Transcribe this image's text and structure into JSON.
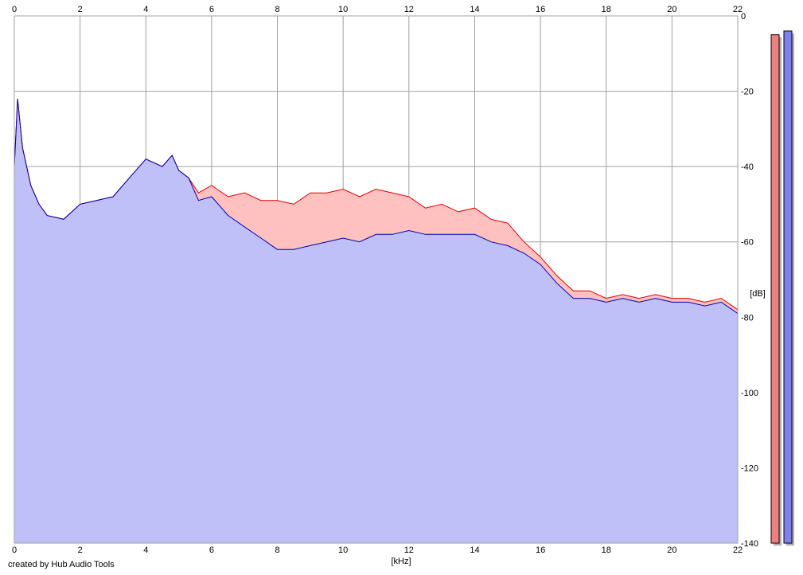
{
  "credit": "created by Hub Audio Tools",
  "chart_data": {
    "type": "area",
    "xlabel": "[kHz]",
    "ylabel": "[dB]",
    "xlim": [
      0,
      22
    ],
    "ylim": [
      -140,
      0
    ],
    "x_ticks": [
      0,
      2,
      4,
      6,
      8,
      10,
      12,
      14,
      16,
      18,
      20,
      22
    ],
    "y_ticks": [
      0,
      -20,
      -40,
      -60,
      -80,
      -100,
      -120,
      -140
    ],
    "y_tick_labels": [
      "0",
      "-20",
      "-40",
      "-60",
      "-80",
      "-100",
      "-120",
      "-140"
    ],
    "grid": true,
    "colors": {
      "left_line": "#e00000",
      "left_fill": "#ffc0c0",
      "right_line": "#0000b0",
      "right_fill": "#c0c0f8",
      "grid": "#a0a0a0",
      "meter_left": "#f08080",
      "meter_right": "#8080f0"
    },
    "x": [
      0,
      0.1,
      0.25,
      0.5,
      0.75,
      1.0,
      1.5,
      2.0,
      2.5,
      3.0,
      3.5,
      4.0,
      4.5,
      4.8,
      5.0,
      5.3,
      5.6,
      6.0,
      6.5,
      7.0,
      7.5,
      8.0,
      8.5,
      9.0,
      9.5,
      10.0,
      10.5,
      11.0,
      11.5,
      12.0,
      12.5,
      13.0,
      13.5,
      14.0,
      14.5,
      15.0,
      15.5,
      16.0,
      16.5,
      17.0,
      17.5,
      18.0,
      18.5,
      19.0,
      19.5,
      20.0,
      20.5,
      21.0,
      21.5,
      22.0
    ],
    "series": [
      {
        "values": [
          -40,
          -22,
          -35,
          -45,
          -50,
          -53,
          -54,
          -50,
          -49,
          -48,
          -43,
          -38,
          -40,
          -37,
          -41,
          -43,
          -47,
          -45,
          -48,
          -47,
          -49,
          -49,
          -50,
          -47,
          -47,
          -46,
          -48,
          -46,
          -47,
          -48,
          -51,
          -50,
          -52,
          -51,
          -54,
          -55,
          -60,
          -64,
          -69,
          -73,
          -73,
          -75,
          -74,
          -75,
          -74,
          -75,
          -75,
          -76,
          -75,
          -78
        ]
      },
      {
        "values": [
          -40,
          -22,
          -35,
          -45,
          -50,
          -53,
          -54,
          -50,
          -49,
          -48,
          -43,
          -38,
          -40,
          -37,
          -41,
          -43,
          -49,
          -48,
          -53,
          -56,
          -59,
          -62,
          -62,
          -61,
          -60,
          -59,
          -60,
          -58,
          -58,
          -57,
          -58,
          -58,
          -58,
          -58,
          -60,
          -61,
          -63,
          -66,
          -71,
          -75,
          -75,
          -76,
          -75,
          -76,
          -75,
          -76,
          -76,
          -77,
          -76,
          -79
        ]
      }
    ],
    "meters": {
      "left": -5,
      "right": -4
    }
  }
}
